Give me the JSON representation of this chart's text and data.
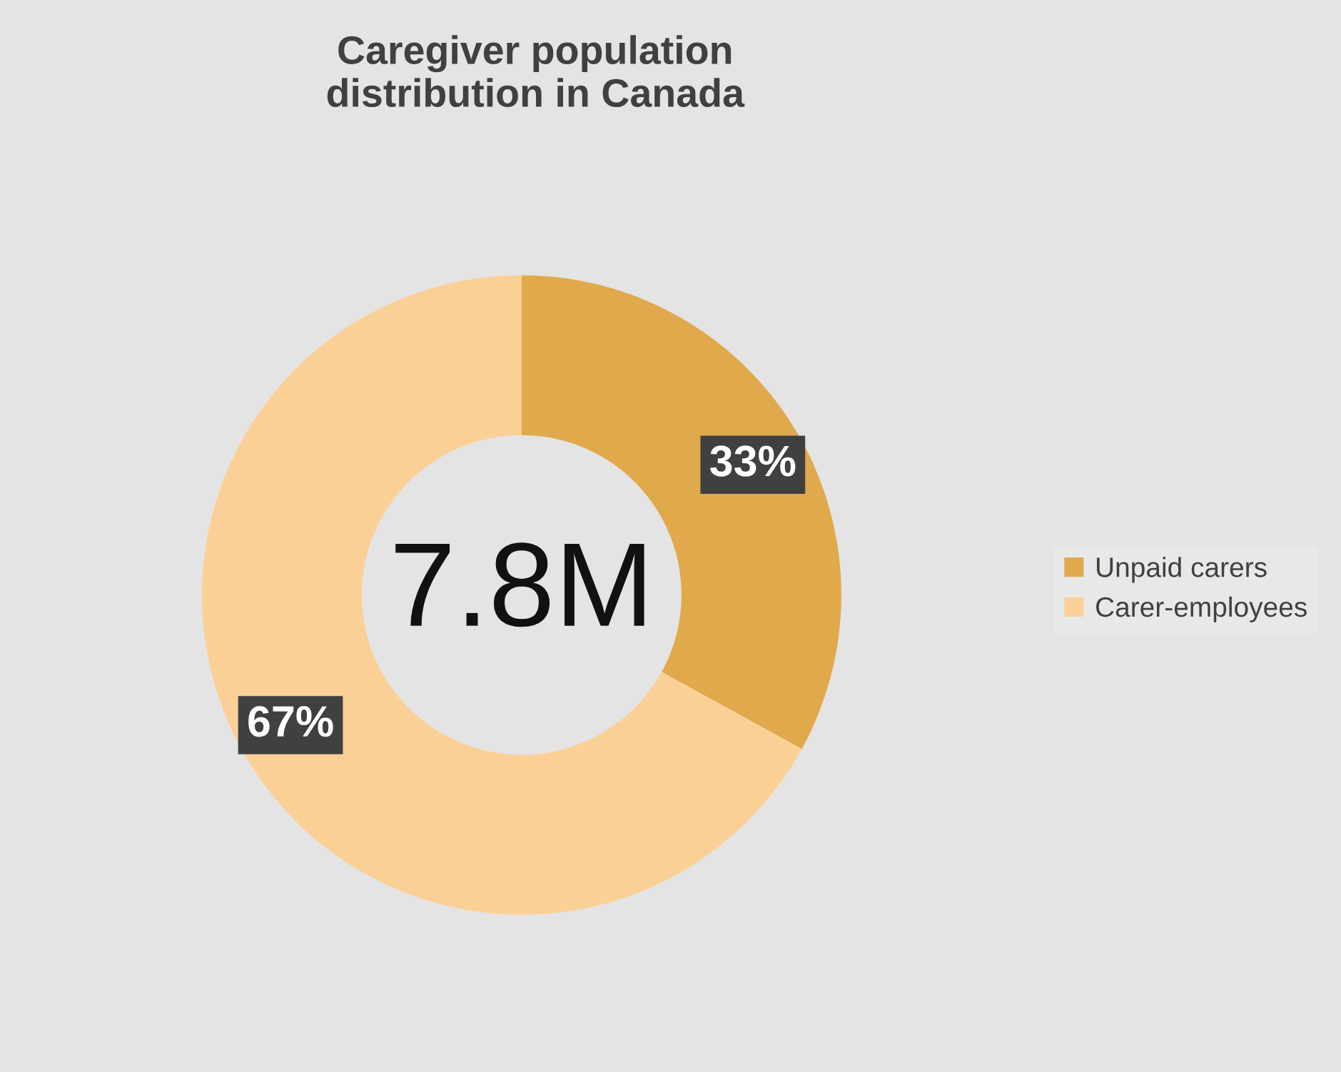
{
  "chart_data": {
    "type": "donut",
    "title": "Caregiver population\ndistribution in Canada",
    "categories": [
      "Unpaid carers",
      "Carer-employees"
    ],
    "values": [
      33,
      67
    ],
    "colors": [
      "#e0a94c",
      "#fbd096"
    ],
    "value_labels": [
      "33%",
      "67%"
    ],
    "annotations": [
      "7.8M"
    ],
    "legend": "right"
  }
}
